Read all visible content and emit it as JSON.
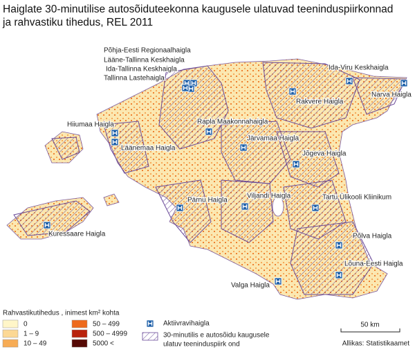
{
  "title": "Haiglate 30-minutilise autosõiduteekonna kaugusele ulatuvad teeninduspiirkonnad ja rahvastiku tihedus, REL 2011",
  "hospitals": [
    {
      "label": "Põhja-Eesti Regionaalhaigla"
    },
    {
      "label": "Lääne-Tallinna Keskhaigla"
    },
    {
      "label": "Ida-Tallinna Keskhaigla"
    },
    {
      "label": "Tallinna Lastehaigla"
    },
    {
      "label": "Ida-Viru Keskhaigla"
    },
    {
      "label": "Narva Haigla"
    },
    {
      "label": "Rakvere Haigla"
    },
    {
      "label": "Hiiumaa Haigla"
    },
    {
      "label": "Rapla Maakonnahaigla"
    },
    {
      "label": "Järvamaa Haigla"
    },
    {
      "label": "Läänemaa Haigla"
    },
    {
      "label": "Jõgeva Haigla"
    },
    {
      "label": "Tartu Ülikooli Kliinikum"
    },
    {
      "label": "Viljandi Haigla"
    },
    {
      "label": "Pärnu Haigla"
    },
    {
      "label": "Kuressaare Haigla"
    },
    {
      "label": "Põlva Haigla"
    },
    {
      "label": "Lõuna-Eesti Haigla"
    },
    {
      "label": "Valga Haigla"
    }
  ],
  "legend": {
    "density_title": "Rahvastikutihedus , inimest km² kohta",
    "density_classes": [
      {
        "label": "0",
        "color": "#fff6c8"
      },
      {
        "label": "1 – 9",
        "color": "#fcd894"
      },
      {
        "label": "10 – 49",
        "color": "#f7ac55"
      },
      {
        "label": "50 – 499",
        "color": "#ee6a1c"
      },
      {
        "label": "500 – 4999",
        "color": "#b9220c"
      },
      {
        "label": "5000 <",
        "color": "#560a05"
      }
    ],
    "hospital_label": "Aktiivravihaigla",
    "area_label_1": "30-minutilis e autosõidu kaugusele",
    "area_label_2": "ulatuv teeninduspiirk ond"
  },
  "scale_label": "50 km",
  "source": "Allikas: Statistikaamet"
}
